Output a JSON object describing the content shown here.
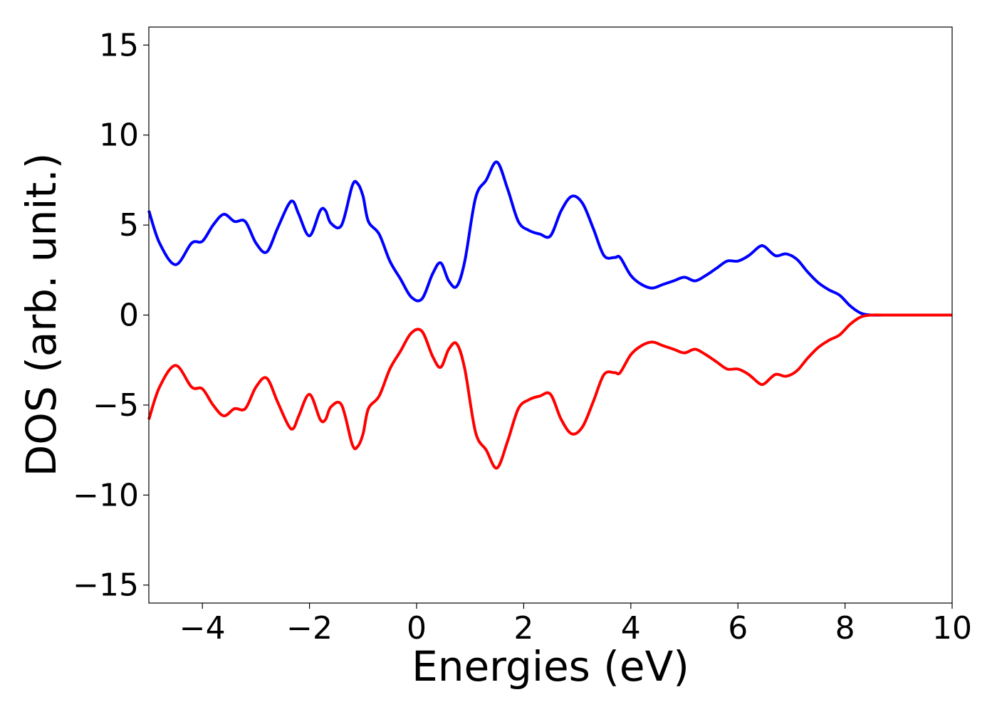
{
  "chart_data": {
    "type": "line",
    "xlabel": "Energies (eV)",
    "ylabel": "DOS (arb. unit.)",
    "xlim": [
      -5,
      10
    ],
    "ylim": [
      -16,
      16
    ],
    "xticks": [
      -4,
      -2,
      0,
      2,
      4,
      6,
      8,
      10
    ],
    "yticks": [
      -15,
      -10,
      -5,
      0,
      5,
      10,
      15
    ],
    "xtick_labels": [
      "−4",
      "−2",
      "0",
      "2",
      "4",
      "6",
      "8",
      "10"
    ],
    "ytick_labels": [
      "−15",
      "−10",
      "−5",
      "0",
      "5",
      "10",
      "15"
    ],
    "grid": false,
    "x": [
      -5.0,
      -4.8,
      -4.5,
      -4.2,
      -4.0,
      -3.8,
      -3.6,
      -3.4,
      -3.2,
      -3.0,
      -2.8,
      -2.6,
      -2.4,
      -2.3,
      -2.2,
      -2.0,
      -1.8,
      -1.7,
      -1.6,
      -1.4,
      -1.2,
      -1.1,
      -1.0,
      -0.9,
      -0.7,
      -0.5,
      -0.3,
      -0.1,
      0.1,
      0.3,
      0.45,
      0.6,
      0.75,
      0.9,
      1.1,
      1.3,
      1.5,
      1.7,
      1.9,
      2.1,
      2.3,
      2.5,
      2.7,
      2.9,
      3.1,
      3.3,
      3.5,
      3.7,
      3.8,
      4.0,
      4.2,
      4.4,
      4.6,
      4.8,
      5.0,
      5.2,
      5.4,
      5.6,
      5.8,
      6.0,
      6.2,
      6.4,
      6.5,
      6.7,
      6.9,
      7.1,
      7.3,
      7.5,
      7.7,
      7.9,
      8.1,
      8.3,
      8.5,
      8.7,
      9.0,
      9.5,
      10.0
    ],
    "series": [
      {
        "color": "#0000ff",
        "values": [
          5.8,
          4.0,
          2.8,
          4.0,
          4.1,
          5.0,
          5.6,
          5.2,
          5.2,
          4.0,
          3.5,
          4.8,
          6.1,
          6.3,
          5.6,
          4.4,
          5.8,
          5.8,
          5.1,
          5.0,
          7.2,
          7.3,
          6.6,
          5.2,
          4.5,
          3.0,
          2.0,
          1.0,
          0.9,
          2.3,
          2.9,
          1.9,
          1.6,
          3.0,
          6.5,
          7.5,
          8.5,
          7.0,
          5.2,
          4.7,
          4.5,
          4.4,
          5.8,
          6.6,
          6.2,
          4.8,
          3.3,
          3.2,
          3.2,
          2.2,
          1.7,
          1.5,
          1.7,
          1.9,
          2.1,
          1.9,
          2.2,
          2.6,
          3.0,
          3.0,
          3.3,
          3.8,
          3.8,
          3.3,
          3.4,
          3.1,
          2.4,
          1.8,
          1.4,
          1.1,
          0.5,
          0.1,
          0.0,
          0.0,
          0.0,
          0.0,
          0.0
        ]
      },
      {
        "color": "#ff0000",
        "values": [
          -5.8,
          -4.0,
          -2.8,
          -4.0,
          -4.1,
          -5.0,
          -5.6,
          -5.2,
          -5.2,
          -4.0,
          -3.5,
          -4.8,
          -6.1,
          -6.3,
          -5.6,
          -4.4,
          -5.8,
          -5.8,
          -5.1,
          -5.0,
          -7.2,
          -7.3,
          -6.6,
          -5.2,
          -4.5,
          -3.0,
          -2.0,
          -1.0,
          -0.9,
          -2.3,
          -2.9,
          -1.9,
          -1.6,
          -3.0,
          -6.5,
          -7.5,
          -8.5,
          -7.0,
          -5.2,
          -4.7,
          -4.5,
          -4.4,
          -5.8,
          -6.6,
          -6.2,
          -4.8,
          -3.3,
          -3.2,
          -3.2,
          -2.2,
          -1.7,
          -1.5,
          -1.7,
          -1.9,
          -2.1,
          -1.9,
          -2.2,
          -2.6,
          -3.0,
          -3.0,
          -3.3,
          -3.8,
          -3.8,
          -3.3,
          -3.4,
          -3.1,
          -2.4,
          -1.8,
          -1.4,
          -1.1,
          -0.5,
          -0.1,
          0.0,
          0.0,
          0.0,
          0.0,
          0.0
        ]
      }
    ]
  }
}
